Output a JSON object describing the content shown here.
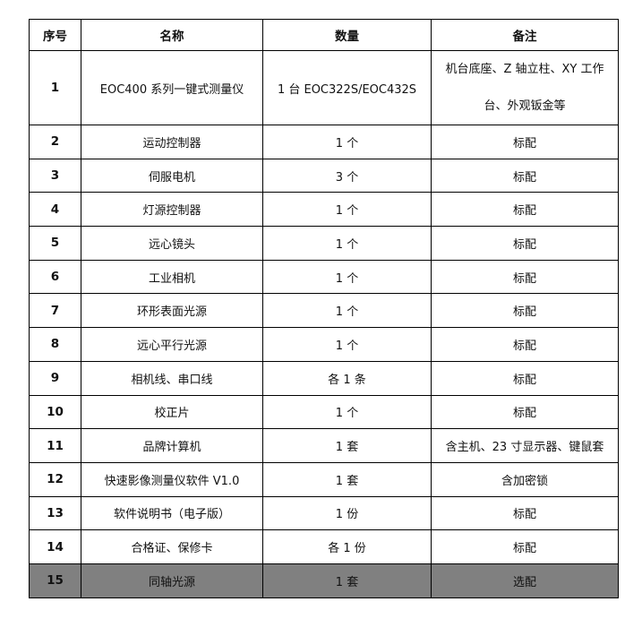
{
  "table": {
    "headers": [
      "序号",
      "名称",
      "数量",
      "备注"
    ],
    "rows": [
      {
        "no": "1",
        "name": "EOC400 系列一键式测量仪",
        "qty": "1 台  EOC322S/EOC432S",
        "note": "机台底座、Z 轴立柱、XY 工作台、外观钣金等"
      },
      {
        "no": "2",
        "name": "运动控制器",
        "qty": "1 个",
        "note": "标配"
      },
      {
        "no": "3",
        "name": "伺服电机",
        "qty": "3 个",
        "note": "标配"
      },
      {
        "no": "4",
        "name": "灯源控制器",
        "qty": "1 个",
        "note": "标配"
      },
      {
        "no": "5",
        "name": "远心镜头",
        "qty": "1 个",
        "note": "标配"
      },
      {
        "no": "6",
        "name": "工业相机",
        "qty": "1 个",
        "note": "标配"
      },
      {
        "no": "7",
        "name": "环形表面光源",
        "qty": "1 个",
        "note": "标配"
      },
      {
        "no": "8",
        "name": "远心平行光源",
        "qty": "1 个",
        "note": "标配"
      },
      {
        "no": "9",
        "name": "相机线、串口线",
        "qty": "各 1 条",
        "note": "标配"
      },
      {
        "no": "10",
        "name": "校正片",
        "qty": "1 个",
        "note": "标配"
      },
      {
        "no": "11",
        "name": "品牌计算机",
        "qty": "1 套",
        "note": "含主机、23 寸显示器、键鼠套"
      },
      {
        "no": "12",
        "name": "快速影像测量仪软件 V1.0",
        "qty": "1 套",
        "note": "含加密锁"
      },
      {
        "no": "13",
        "name": "软件说明书（电子版）",
        "qty": "1 份",
        "note": "标配"
      },
      {
        "no": "14",
        "name": "合格证、保修卡",
        "qty": "各 1 份",
        "note": "标配"
      },
      {
        "no": "15",
        "name": "同轴光源",
        "qty": "1 套",
        "note": "选配"
      }
    ],
    "highlight_color": "#808080"
  }
}
